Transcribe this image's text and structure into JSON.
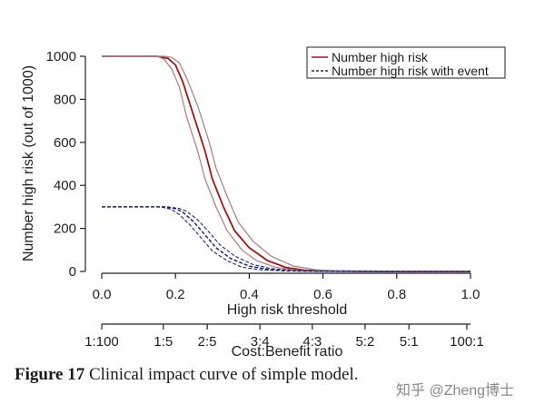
{
  "chart_data": {
    "type": "line",
    "ylabel": "Number high risk (out of 1000)",
    "xlabel": "High risk threshold",
    "secondary_xlabel": "Cost:Benefit ratio",
    "xlim": [
      0,
      1
    ],
    "ylim": [
      0,
      1000
    ],
    "x_ticks": [
      "0.0",
      "0.2",
      "0.4",
      "0.6",
      "0.8",
      "1.0"
    ],
    "y_ticks": [
      "0",
      "200",
      "400",
      "600",
      "800",
      "1000"
    ],
    "secondary_x_ticks": [
      {
        "x": 0.0,
        "label": "1:100"
      },
      {
        "x": 0.167,
        "label": "1:5"
      },
      {
        "x": 0.286,
        "label": "2:5"
      },
      {
        "x": 0.429,
        "label": "3:4"
      },
      {
        "x": 0.571,
        "label": "4:3"
      },
      {
        "x": 0.714,
        "label": "5:2"
      },
      {
        "x": 0.833,
        "label": "5:1"
      },
      {
        "x": 0.99,
        "label": "100:1"
      }
    ],
    "legend": {
      "position": "top-right",
      "entries": [
        "Number high risk",
        "Number high risk with event"
      ]
    },
    "colors": {
      "high_risk": "#a31515",
      "high_risk_ci": "#b07a7a",
      "with_event": "#1c2a7a",
      "axis": "#222222"
    },
    "series": [
      {
        "name": "Number high risk",
        "style": "solid",
        "role": "estimate",
        "points": [
          [
            0.0,
            1000
          ],
          [
            0.15,
            1000
          ],
          [
            0.18,
            990
          ],
          [
            0.2,
            960
          ],
          [
            0.22,
            880
          ],
          [
            0.25,
            720
          ],
          [
            0.28,
            560
          ],
          [
            0.3,
            430
          ],
          [
            0.33,
            300
          ],
          [
            0.36,
            190
          ],
          [
            0.4,
            110
          ],
          [
            0.45,
            50
          ],
          [
            0.5,
            18
          ],
          [
            0.55,
            6
          ],
          [
            0.6,
            2
          ],
          [
            0.7,
            1
          ],
          [
            0.8,
            0
          ],
          [
            1.0,
            0
          ]
        ]
      },
      {
        "style": "solid",
        "role": "lower",
        "points": [
          [
            0.0,
            1000
          ],
          [
            0.15,
            1000
          ],
          [
            0.17,
            985
          ],
          [
            0.19,
            940
          ],
          [
            0.21,
            860
          ],
          [
            0.23,
            720
          ],
          [
            0.26,
            560
          ],
          [
            0.28,
            430
          ],
          [
            0.31,
            300
          ],
          [
            0.34,
            190
          ],
          [
            0.38,
            100
          ],
          [
            0.42,
            50
          ],
          [
            0.47,
            20
          ],
          [
            0.53,
            6
          ],
          [
            0.6,
            1
          ],
          [
            0.8,
            0
          ],
          [
            1.0,
            0
          ]
        ]
      },
      {
        "style": "solid",
        "role": "upper",
        "points": [
          [
            0.0,
            1000
          ],
          [
            0.17,
            1000
          ],
          [
            0.19,
            995
          ],
          [
            0.21,
            970
          ],
          [
            0.23,
            900
          ],
          [
            0.26,
            770
          ],
          [
            0.29,
            610
          ],
          [
            0.31,
            480
          ],
          [
            0.34,
            350
          ],
          [
            0.37,
            230
          ],
          [
            0.41,
            140
          ],
          [
            0.46,
            70
          ],
          [
            0.52,
            25
          ],
          [
            0.58,
            8
          ],
          [
            0.65,
            2
          ],
          [
            0.8,
            0
          ],
          [
            1.0,
            0
          ]
        ]
      },
      {
        "name": "Number high risk with event",
        "style": "dashed",
        "role": "estimate",
        "points": [
          [
            0.0,
            300
          ],
          [
            0.17,
            300
          ],
          [
            0.2,
            292
          ],
          [
            0.22,
            275
          ],
          [
            0.25,
            230
          ],
          [
            0.28,
            170
          ],
          [
            0.31,
            110
          ],
          [
            0.35,
            60
          ],
          [
            0.4,
            25
          ],
          [
            0.45,
            10
          ],
          [
            0.5,
            4
          ],
          [
            0.6,
            1
          ],
          [
            0.8,
            0
          ],
          [
            1.0,
            0
          ]
        ]
      },
      {
        "style": "dashed",
        "role": "lower",
        "points": [
          [
            0.0,
            300
          ],
          [
            0.16,
            300
          ],
          [
            0.19,
            288
          ],
          [
            0.21,
            265
          ],
          [
            0.24,
            215
          ],
          [
            0.27,
            155
          ],
          [
            0.3,
            95
          ],
          [
            0.34,
            50
          ],
          [
            0.38,
            20
          ],
          [
            0.43,
            8
          ],
          [
            0.5,
            2
          ],
          [
            0.6,
            0
          ],
          [
            1.0,
            0
          ]
        ]
      },
      {
        "style": "dashed",
        "role": "upper",
        "points": [
          [
            0.0,
            300
          ],
          [
            0.18,
            300
          ],
          [
            0.21,
            293
          ],
          [
            0.23,
            280
          ],
          [
            0.26,
            240
          ],
          [
            0.29,
            185
          ],
          [
            0.32,
            125
          ],
          [
            0.36,
            72
          ],
          [
            0.41,
            32
          ],
          [
            0.46,
            13
          ],
          [
            0.52,
            5
          ],
          [
            0.6,
            1
          ],
          [
            0.8,
            0
          ],
          [
            1.0,
            0
          ]
        ]
      }
    ]
  },
  "caption": {
    "label": "Figure 17",
    "text": "Clinical impact curve of simple model."
  },
  "watermark": "知乎 @Zheng博士"
}
